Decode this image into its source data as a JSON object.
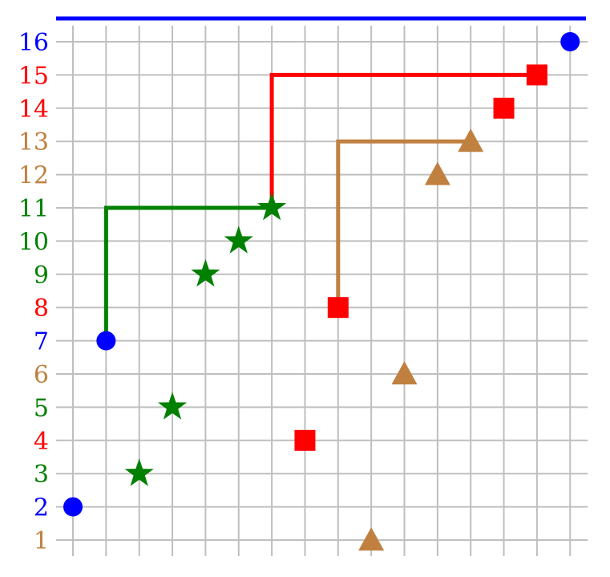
{
  "chart_data": {
    "type": "scatter",
    "x_range": [
      1,
      16
    ],
    "y_range": [
      1,
      16
    ],
    "grid": true,
    "colors": {
      "blue": "#0000ff",
      "red": "#ff0000",
      "brown": "#bf8040",
      "green": "#008000",
      "grid": "#bfbfbf"
    },
    "y_tick_labels": [
      {
        "value": 1,
        "text": "1",
        "color": "brown"
      },
      {
        "value": 2,
        "text": "2",
        "color": "blue"
      },
      {
        "value": 3,
        "text": "3",
        "color": "green"
      },
      {
        "value": 4,
        "text": "4",
        "color": "red"
      },
      {
        "value": 5,
        "text": "5",
        "color": "green"
      },
      {
        "value": 6,
        "text": "6",
        "color": "brown"
      },
      {
        "value": 7,
        "text": "7",
        "color": "blue"
      },
      {
        "value": 8,
        "text": "8",
        "color": "red"
      },
      {
        "value": 9,
        "text": "9",
        "color": "green"
      },
      {
        "value": 10,
        "text": "10",
        "color": "green"
      },
      {
        "value": 11,
        "text": "11",
        "color": "green"
      },
      {
        "value": 12,
        "text": "12",
        "color": "brown"
      },
      {
        "value": 13,
        "text": "13",
        "color": "brown"
      },
      {
        "value": 14,
        "text": "14",
        "color": "red"
      },
      {
        "value": 15,
        "text": "15",
        "color": "red"
      },
      {
        "value": 16,
        "text": "16",
        "color": "blue"
      }
    ],
    "series": [
      {
        "marker": "circle",
        "color": "blue",
        "points": [
          [
            1,
            2
          ],
          [
            2,
            7
          ],
          [
            16,
            16
          ]
        ]
      },
      {
        "marker": "star",
        "color": "green",
        "points": [
          [
            3,
            3
          ],
          [
            4,
            5
          ],
          [
            5,
            9
          ],
          [
            6,
            10
          ],
          [
            7,
            11
          ]
        ]
      },
      {
        "marker": "square",
        "color": "red",
        "points": [
          [
            8,
            4
          ],
          [
            9,
            8
          ],
          [
            14,
            14
          ],
          [
            15,
            15
          ]
        ]
      },
      {
        "marker": "triangle",
        "color": "brown",
        "points": [
          [
            10,
            1
          ],
          [
            11,
            6
          ],
          [
            12,
            12
          ],
          [
            13,
            13
          ]
        ]
      }
    ],
    "hooks": [
      {
        "color": "green",
        "points": [
          [
            2,
            7
          ],
          [
            2,
            11
          ],
          [
            7,
            11
          ]
        ]
      },
      {
        "color": "red",
        "points": [
          [
            7,
            11
          ],
          [
            7,
            15
          ],
          [
            15,
            15
          ]
        ]
      },
      {
        "color": "brown",
        "points": [
          [
            9,
            8
          ],
          [
            9,
            13
          ],
          [
            13,
            13
          ]
        ]
      }
    ],
    "top_line": {
      "color": "blue",
      "y": 16.7
    }
  }
}
